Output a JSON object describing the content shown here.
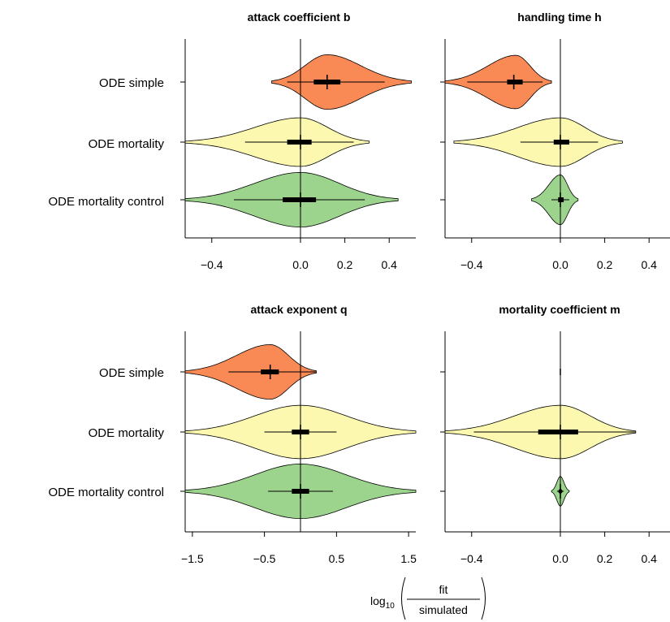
{
  "chart_data": [
    {
      "type": "violin",
      "title": "attack coefficient b",
      "categories": [
        "ODE simple",
        "ODE mortality",
        "ODE mortality control"
      ],
      "xlim": [
        -0.52,
        0.52
      ],
      "xticks": [
        -0.4,
        0.0,
        0.2,
        0.4
      ],
      "xtick_labels": [
        "−0.4",
        "0.0",
        "0.2",
        "0.4"
      ],
      "refline": 0,
      "series": [
        {
          "color": "#F98A56",
          "min": -0.13,
          "max": 0.5,
          "center": 0.12,
          "peak": 0.12,
          "width": 0.92,
          "q1": 0.06,
          "q3": 0.18,
          "wlo": -0.06,
          "whi": 0.38,
          "median": 0.12,
          "mean": 0.12
        },
        {
          "color": "#FCF8B0",
          "min": -0.52,
          "max": 0.31,
          "center": 0.0,
          "peak": 0.0,
          "width": 0.82,
          "q1": -0.06,
          "q3": 0.05,
          "wlo": -0.25,
          "whi": 0.24,
          "median": 0.0,
          "mean": 0.0
        },
        {
          "color": "#9CD48D",
          "min": -0.52,
          "max": 0.44,
          "center": 0.0,
          "peak": 0.0,
          "width": 0.92,
          "q1": -0.08,
          "q3": 0.07,
          "wlo": -0.3,
          "whi": 0.29,
          "median": 0.0,
          "mean": -0.01
        }
      ]
    },
    {
      "type": "violin",
      "title": "handling time h",
      "categories": [
        "ODE simple",
        "ODE mortality",
        "ODE mortality control"
      ],
      "xlim": [
        -0.52,
        0.52
      ],
      "xticks": [
        -0.4,
        0.0,
        0.2,
        0.4
      ],
      "xtick_labels": [
        "−0.4",
        "0.0",
        "0.2",
        "0.4"
      ],
      "refline": 0,
      "series": [
        {
          "color": "#F98A56",
          "min": -0.52,
          "max": -0.04,
          "center": -0.2,
          "peak": -0.2,
          "width": 0.9,
          "q1": -0.24,
          "q3": -0.17,
          "wlo": -0.42,
          "whi": -0.08,
          "median": -0.21,
          "mean": -0.21
        },
        {
          "color": "#FCF8B0",
          "min": -0.48,
          "max": 0.28,
          "center": 0.0,
          "peak": 0.0,
          "width": 0.82,
          "q1": -0.03,
          "q3": 0.04,
          "wlo": -0.18,
          "whi": 0.17,
          "median": 0.0,
          "mean": 0.0
        },
        {
          "color": "#9CD48D",
          "min": -0.13,
          "max": 0.08,
          "center": 0.0,
          "peak": 0.0,
          "width": 0.84,
          "q1": -0.01,
          "q3": 0.015,
          "wlo": -0.04,
          "whi": 0.04,
          "median": 0.0,
          "mean": 0.0
        }
      ]
    },
    {
      "type": "violin",
      "title": "attack exponent q",
      "categories": [
        "ODE simple",
        "ODE mortality",
        "ODE mortality control"
      ],
      "xlim": [
        -1.6,
        1.6
      ],
      "xticks": [
        -1.5,
        -0.5,
        0.5,
        1.5
      ],
      "xtick_labels": [
        "−1.5",
        "−0.5",
        "0.5",
        "1.5"
      ],
      "refline": 0,
      "series": [
        {
          "color": "#F98A56",
          "min": -1.6,
          "max": 0.22,
          "center": -0.42,
          "peak": -0.42,
          "width": 0.92,
          "q1": -0.55,
          "q3": -0.3,
          "wlo": -1.0,
          "whi": 0.22,
          "median": -0.42,
          "mean": -0.42
        },
        {
          "color": "#FCF8B0",
          "min": -1.6,
          "max": 1.6,
          "center": 0.0,
          "peak": 0.0,
          "width": 0.9,
          "q1": -0.12,
          "q3": 0.12,
          "wlo": -0.5,
          "whi": 0.5,
          "median": 0.0,
          "mean": 0.0
        },
        {
          "color": "#9CD48D",
          "min": -1.6,
          "max": 1.6,
          "center": 0.0,
          "peak": 0.0,
          "width": 0.92,
          "q1": -0.12,
          "q3": 0.12,
          "wlo": -0.45,
          "whi": 0.45,
          "median": 0.0,
          "mean": 0.0
        }
      ]
    },
    {
      "type": "violin",
      "title": "mortality coefficient m",
      "categories": [
        "ODE simple",
        "ODE mortality",
        "ODE mortality control"
      ],
      "xlim": [
        -0.52,
        0.52
      ],
      "xticks": [
        -0.4,
        0.0,
        0.2,
        0.4
      ],
      "xtick_labels": [
        "−0.4",
        "0.0",
        "0.2",
        "0.4"
      ],
      "refline": 0,
      "series": [
        {
          "color": "#F98A56",
          "min": -0.003,
          "max": 0.003,
          "center": 0.0,
          "peak": 0.0,
          "width": 0.0,
          "q1": 0.0,
          "q3": 0.0,
          "wlo": 0.0,
          "whi": 0.0,
          "median": 0.0,
          "mean": 0.0,
          "empty": true
        },
        {
          "color": "#FCF8B0",
          "min": -0.52,
          "max": 0.34,
          "center": 0.0,
          "peak": 0.0,
          "width": 0.9,
          "q1": -0.1,
          "q3": 0.08,
          "wlo": -0.39,
          "whi": 0.34,
          "median": 0.0,
          "mean": 0.0
        },
        {
          "color": "#9CD48D",
          "min": -0.04,
          "max": 0.04,
          "center": 0.0,
          "peak": 0.0,
          "width": 0.5,
          "q1": -0.004,
          "q3": 0.004,
          "wlo": -0.015,
          "whi": 0.015,
          "median": 0.0,
          "mean": 0.0
        }
      ]
    }
  ],
  "xaxis_label": {
    "prefix": "log",
    "subscript": "10",
    "numerator": "fit",
    "denominator": "simulated"
  }
}
